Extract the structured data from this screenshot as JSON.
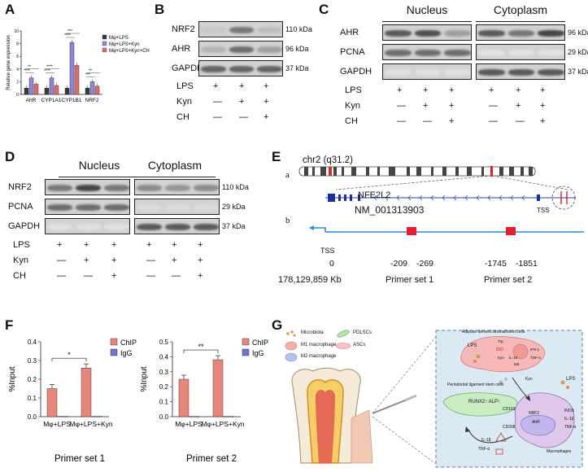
{
  "panels": {
    "A": {
      "letter": "A"
    },
    "B": {
      "letter": "B"
    },
    "C": {
      "letter": "C"
    },
    "D": {
      "letter": "D"
    },
    "E": {
      "letter": "E"
    },
    "F": {
      "letter": "F"
    },
    "G": {
      "letter": "G"
    }
  },
  "chart_data": [
    {
      "type": "bar",
      "panel": "A",
      "ylabel": "Relative gene expression",
      "categories": [
        "AhR",
        "CYP1A1",
        "CYP1B1",
        "NRF2"
      ],
      "series": [
        {
          "name": "Mφ+LPS",
          "color": "#3a3a3a",
          "values": [
            1.0,
            1.0,
            1.0,
            1.0
          ]
        },
        {
          "name": "Mφ+LPS+Kyn",
          "color": "#8c87d6",
          "values": [
            2.6,
            2.6,
            8.2,
            2.0
          ]
        },
        {
          "name": "Mφ+LPS+Kyn+CH",
          "color": "#e06b6b",
          "values": [
            1.6,
            1.4,
            4.6,
            1.3
          ]
        }
      ],
      "ylim": [
        0,
        10
      ],
      "yticks": [
        "0",
        "2",
        "4",
        "6",
        "8",
        "10"
      ]
    },
    {
      "type": "bar",
      "panel": "F-left",
      "title": "Primer set 1",
      "ylabel": "%Input",
      "categories": [
        "Mφ+LPS",
        "Mφ+LPS+Kyn"
      ],
      "series": [
        {
          "name": "ChIP",
          "color": "#e8867c",
          "values": [
            0.15,
            0.26
          ]
        },
        {
          "name": "IgG",
          "color": "#6f74d8",
          "values": [
            0.002,
            0.002
          ]
        }
      ],
      "ylim": [
        0,
        0.4
      ],
      "yticks": [
        "0.0",
        "0.1",
        "0.2",
        "0.3",
        "0.4"
      ],
      "significance": "*"
    },
    {
      "type": "bar",
      "panel": "F-right",
      "title": "Primer set 2",
      "ylabel": "%Input",
      "categories": [
        "Mφ+LPS",
        "Mφ+LPS+Kyn"
      ],
      "series": [
        {
          "name": "ChIP",
          "color": "#e8867c",
          "values": [
            0.25,
            0.38
          ]
        },
        {
          "name": "IgG",
          "color": "#6f74d8",
          "values": [
            0.002,
            0.002
          ]
        }
      ],
      "ylim": [
        0,
        0.5
      ],
      "yticks": [
        "0.0",
        "0.1",
        "0.2",
        "0.3",
        "0.4",
        "0.5"
      ],
      "significance": "**"
    }
  ],
  "A_stars": [
    "****",
    "**",
    "****",
    "****",
    "****",
    "***",
    "***",
    "**"
  ],
  "blotB": {
    "rows": [
      {
        "label": "NRF2",
        "kda": "110 kDa"
      },
      {
        "label": "AHR",
        "kda": "96 kDa"
      },
      {
        "label": "GAPDH",
        "kda": "37 kDa"
      }
    ],
    "treat_labels": [
      "LPS",
      "Kyn",
      "CH"
    ],
    "treat_marks": [
      [
        "+",
        "+",
        "+"
      ],
      [
        "—",
        "+",
        "+"
      ],
      [
        "—",
        "—",
        "+"
      ]
    ]
  },
  "blotC": {
    "header_left": "Nucleus",
    "header_right": "Cytoplasm",
    "rows": [
      {
        "label": "AHR",
        "kda": "96 kDa"
      },
      {
        "label": "PCNA",
        "kda": "29 kDa"
      },
      {
        "label": "GAPDH",
        "kda": "37 kDa"
      }
    ],
    "treat_labels": [
      "LPS",
      "Kyn",
      "CH"
    ],
    "treat_marks": [
      [
        "+",
        "+",
        "+",
        "+",
        "+",
        "+"
      ],
      [
        "—",
        "+",
        "+",
        "—",
        "+",
        "+"
      ],
      [
        "—",
        "—",
        "+",
        "—",
        "—",
        "+"
      ]
    ]
  },
  "blotD": {
    "header_left": "Nucleus",
    "header_right": "Cytoplasm",
    "rows": [
      {
        "label": "NRF2",
        "kda": "110 kDa"
      },
      {
        "label": "PCNA",
        "kda": "29 kDa"
      },
      {
        "label": "GAPDH",
        "kda": "37 kDa"
      }
    ],
    "treat_labels": [
      "LPS",
      "Kyn",
      "CH"
    ],
    "treat_marks": [
      [
        "+",
        "+",
        "+",
        "+",
        "+",
        "+"
      ],
      [
        "—",
        "+",
        "+",
        "—",
        "+",
        "+"
      ],
      [
        "—",
        "—",
        "+",
        "—",
        "—",
        "+"
      ]
    ]
  },
  "panelE": {
    "chrom": "chr2 (q31.2)",
    "sub_a": "a",
    "sub_b": "b",
    "gene": "NFE2L2",
    "transcript": "NM_001313903",
    "tss": "TSS",
    "tss_b": "TSS",
    "zero": "0",
    "coord": "178,129,859 Kb",
    "p1a": "-209",
    "p1b": "-269",
    "p2a": "-1745",
    "p2b": "-1851",
    "primer1": "Primer set 1",
    "primer2": "Primer set 2"
  },
  "panelG": {
    "legend": [
      "Microbiota",
      "M1 macrophage",
      "M2 macrophage",
      "PDLSCs",
      "ASCs"
    ],
    "adipose": "Adipose derived stromal/stem cells",
    "pdl": "Periodontal ligament stem cells",
    "runx2": "RUNX2↑  ALP↑",
    "lps1": "LPS",
    "lps2": "LPS",
    "ido": "IDO",
    "trp": "Trp",
    "kyn1": "Kyn",
    "kyn2": "Kyn",
    "ifng": "IFN-γ",
    "il10": "IL-10",
    "tnfa": "TNF-α",
    "ikb": "IκB",
    "cd163": "CD163",
    "cd206": "CD206",
    "il1b_left": "IL-1β",
    "tnfa_left": "TNF-α",
    "inos": "iNOS",
    "il1b": "IL-1β",
    "tnfa2": "TNF-α",
    "nrf2": "NRF2",
    "ahr": "AhR",
    "macrophages": "Macrophages"
  }
}
